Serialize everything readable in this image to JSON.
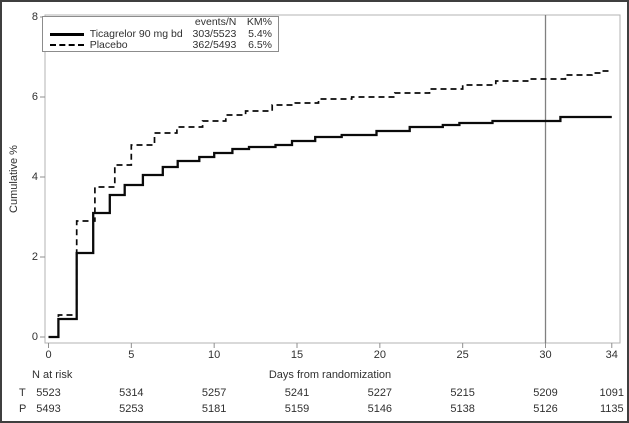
{
  "chart_data": {
    "type": "line",
    "subtype": "kaplan-meier-cumulative-incidence-step",
    "title": "",
    "xlabel": "Days from randomization",
    "ylabel": "Cumulative %",
    "xlim": [
      0,
      34
    ],
    "ylim": [
      0,
      8
    ],
    "x_ticks": [
      0,
      5,
      10,
      15,
      20,
      25,
      30,
      34
    ],
    "y_ticks": [
      0,
      2,
      4,
      6,
      8
    ],
    "grid": false,
    "reference_line_x": 30,
    "legend": {
      "position": "top-left",
      "col1_header": "events/N",
      "col2_header": "KM%"
    },
    "series": [
      {
        "name": "Ticagrelor 90 mg bd",
        "line": "solid",
        "color": "#000000",
        "events_n": "303/5523",
        "km_pct": "5.4%",
        "points": [
          [
            0,
            0
          ],
          [
            0.6,
            0.45
          ],
          [
            1.7,
            2.1
          ],
          [
            2.7,
            3.1
          ],
          [
            3.7,
            3.55
          ],
          [
            4.6,
            3.8
          ],
          [
            5.7,
            4.05
          ],
          [
            6.9,
            4.25
          ],
          [
            7.8,
            4.4
          ],
          [
            9.1,
            4.5
          ],
          [
            10,
            4.6
          ],
          [
            11.1,
            4.7
          ],
          [
            12.1,
            4.75
          ],
          [
            13.7,
            4.8
          ],
          [
            14.7,
            4.9
          ],
          [
            16.1,
            5.0
          ],
          [
            17.7,
            5.05
          ],
          [
            19.8,
            5.15
          ],
          [
            21.8,
            5.25
          ],
          [
            23.8,
            5.3
          ],
          [
            24.8,
            5.35
          ],
          [
            26.8,
            5.4
          ],
          [
            30.9,
            5.5
          ],
          [
            34,
            5.5
          ]
        ]
      },
      {
        "name": "Placebo",
        "line": "dashed",
        "color": "#000000",
        "events_n": "362/5493",
        "km_pct": "6.5%",
        "points": [
          [
            0,
            0
          ],
          [
            0.6,
            0.55
          ],
          [
            1.7,
            2.9
          ],
          [
            2.8,
            3.75
          ],
          [
            4.0,
            4.3
          ],
          [
            5.0,
            4.8
          ],
          [
            6.4,
            5.1
          ],
          [
            7.75,
            5.25
          ],
          [
            9.3,
            5.4
          ],
          [
            10.7,
            5.55
          ],
          [
            11.9,
            5.65
          ],
          [
            13.5,
            5.8
          ],
          [
            14.9,
            5.85
          ],
          [
            16.3,
            5.95
          ],
          [
            18.3,
            6.0
          ],
          [
            20.9,
            6.1
          ],
          [
            23,
            6.2
          ],
          [
            25,
            6.3
          ],
          [
            27,
            6.4
          ],
          [
            29,
            6.45
          ],
          [
            31.2,
            6.55
          ],
          [
            32.8,
            6.6
          ],
          [
            33.4,
            6.65
          ],
          [
            34,
            6.65
          ]
        ]
      }
    ]
  },
  "risk_table": {
    "title": "N at risk",
    "tick_days": [
      0,
      5,
      10,
      15,
      20,
      25,
      30,
      34
    ],
    "rows": [
      {
        "label": "T",
        "values": [
          "5523",
          "5314",
          "5257",
          "5241",
          "5227",
          "5215",
          "5209",
          "1091"
        ]
      },
      {
        "label": "P",
        "values": [
          "5493",
          "5253",
          "5181",
          "5159",
          "5146",
          "5138",
          "5126",
          "1135"
        ]
      }
    ]
  },
  "colors": {
    "frame": "#b3b3b3",
    "tick": "#8f8f8f",
    "reference_line": "#808080",
    "text": "#303030",
    "curve": "#0a0a0a",
    "border": "#3f3f3f"
  }
}
